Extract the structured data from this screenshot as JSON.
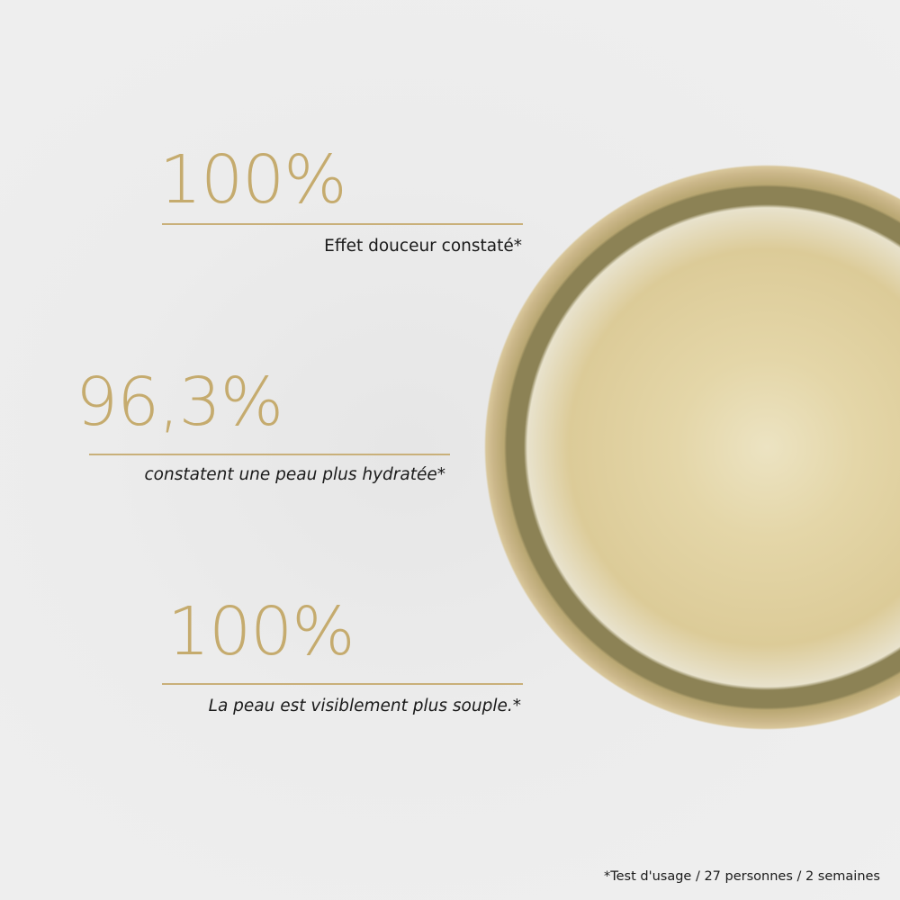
{
  "stats": [
    {
      "value": "100%",
      "caption": "Effet douceur constaté*"
    },
    {
      "value": "96,3%",
      "caption": "constatent une peau plus hydratée*"
    },
    {
      "value": "100%",
      "caption": "La peau est visiblement plus souple.*"
    }
  ],
  "footnote": "*Test d'usage / 27 personnes / 2 semaines",
  "colors": {
    "accent": "#c5ab6e",
    "text": "#1a1a1a",
    "background": "#ececec"
  }
}
